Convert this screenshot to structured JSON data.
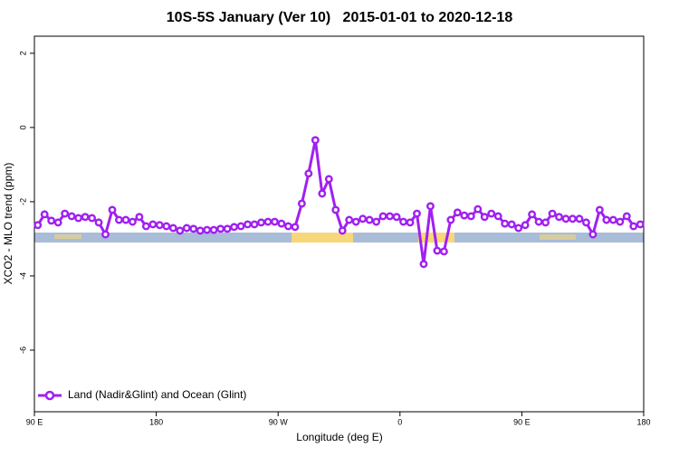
{
  "chart_data": {
    "type": "line",
    "title": "10S-5S January (Ver 10)   2015-01-01 to 2020-12-18",
    "x_label": "Longitude (deg E)",
    "y_label": "XCO2 - MLO trend (ppm)",
    "x": [
      92.5,
      97.5,
      102.5,
      107.5,
      112.5,
      117.5,
      122.5,
      127.5,
      132.5,
      137.5,
      142.5,
      147.5,
      152.5,
      157.5,
      162.5,
      167.5,
      172.5,
      177.5,
      182.5,
      187.5,
      192.5,
      197.5,
      202.5,
      207.5,
      212.5,
      217.5,
      222.5,
      227.5,
      232.5,
      237.5,
      242.5,
      247.5,
      252.5,
      257.5,
      262.5,
      267.5,
      272.5,
      277.5,
      282.5,
      287.5,
      292.5,
      297.5,
      302.5,
      307.5,
      312.5,
      317.5,
      322.5,
      327.5,
      332.5,
      337.5,
      342.5,
      347.5,
      352.5,
      357.5,
      362.5,
      367.5,
      372.5,
      377.5,
      382.5,
      387.5,
      392.5,
      397.5,
      402.5,
      407.5,
      412.5,
      417.5,
      422.5,
      427.5,
      432.5,
      437.5,
      442.5,
      447.5,
      452.5,
      457.5,
      462.5,
      467.5,
      472.5,
      477.5,
      482.5,
      487.5,
      492.5,
      497.5,
      502.5,
      507.5,
      512.5,
      517.5,
      522.5,
      527.5,
      532.5,
      537.5
    ],
    "series": [
      {
        "name": "Land (Nadir&Glint) and Ocean (Glint)",
        "color": "#a020f0",
        "values": [
          -2.63,
          -2.34,
          -2.51,
          -2.56,
          -2.32,
          -2.39,
          -2.44,
          -2.41,
          -2.44,
          -2.56,
          -2.88,
          -2.22,
          -2.49,
          -2.49,
          -2.54,
          -2.41,
          -2.66,
          -2.61,
          -2.63,
          -2.66,
          -2.71,
          -2.78,
          -2.71,
          -2.73,
          -2.78,
          -2.76,
          -2.76,
          -2.73,
          -2.73,
          -2.68,
          -2.66,
          -2.61,
          -2.61,
          -2.56,
          -2.54,
          -2.54,
          -2.59,
          -2.66,
          -2.68,
          -2.05,
          -1.24,
          -0.34,
          -1.78,
          -1.39,
          -2.22,
          -2.78,
          -2.49,
          -2.54,
          -2.46,
          -2.49,
          -2.54,
          -2.39,
          -2.39,
          -2.41,
          -2.54,
          -2.56,
          -2.32,
          -3.68,
          -2.12,
          -3.32,
          -3.34,
          -2.49,
          -2.29,
          -2.37,
          -2.39,
          -2.2,
          -2.41,
          -2.32,
          -2.39,
          -2.59,
          -2.61,
          -2.71,
          -2.63,
          -2.34,
          -2.54,
          -2.56,
          -2.32,
          -2.41,
          -2.46,
          -2.46,
          -2.46,
          -2.56,
          -2.88,
          -2.22,
          -2.49,
          -2.49,
          -2.54,
          -2.39,
          -2.66,
          -2.61
        ]
      }
    ],
    "xlim": [
      90,
      540
    ],
    "xticks": [
      {
        "value": 90,
        "label": "90 E"
      },
      {
        "value": 180,
        "label": "180"
      },
      {
        "value": 270,
        "label": "90 W"
      },
      {
        "value": 360,
        "label": "0"
      },
      {
        "value": 450,
        "label": "90 E"
      },
      {
        "value": 540,
        "label": "180"
      }
    ],
    "ylim": [
      -7.66,
      2.46
    ],
    "yticks": [
      2,
      0,
      -2,
      -4,
      -6
    ],
    "legend": "bottom-left"
  }
}
